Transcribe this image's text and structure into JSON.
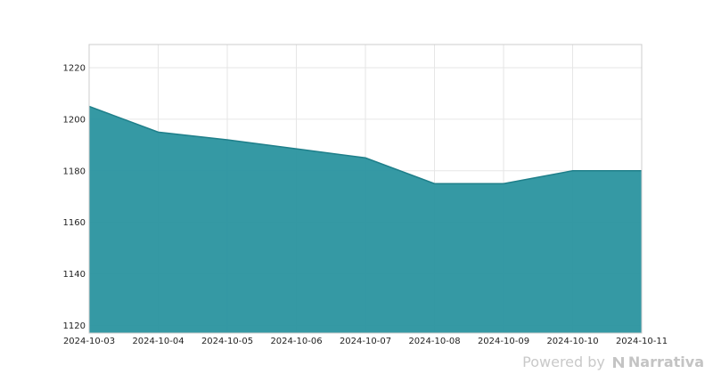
{
  "chart_data": {
    "type": "area",
    "x": [
      "2024-10-03",
      "2024-10-04",
      "2024-10-05",
      "2024-10-06",
      "2024-10-07",
      "2024-10-08",
      "2024-10-09",
      "2024-10-10",
      "2024-10-11"
    ],
    "series": [
      {
        "values": [
          1205,
          1195,
          1192,
          1188.5,
          1185,
          1175,
          1175,
          1180,
          1180
        ],
        "color": "#2a939f"
      }
    ],
    "ylim": [
      1117,
      1229
    ],
    "yticks": [
      1120,
      1140,
      1160,
      1180,
      1200,
      1220
    ],
    "grid": true,
    "title": "",
    "xlabel": "",
    "ylabel": ""
  },
  "watermark": {
    "prefix": "Powered by",
    "brand": "Narrativa",
    "icon": "narrativa-logo-icon"
  }
}
